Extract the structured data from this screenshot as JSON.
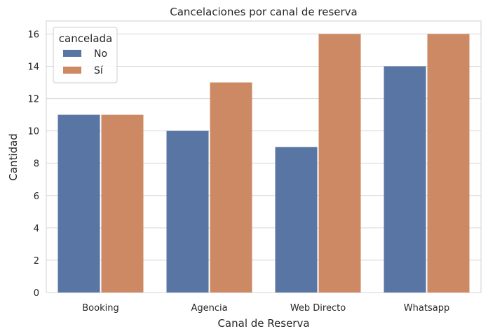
{
  "chart_data": {
    "type": "bar",
    "title": "Cancelaciones por canal de reserva",
    "xlabel": "Canal de Reserva",
    "ylabel": "Cantidad",
    "categories": [
      "Booking",
      "Agencia",
      "Web Directo",
      "Whatsapp"
    ],
    "series": [
      {
        "name": "No",
        "values": [
          11,
          10,
          9,
          14
        ],
        "color": "#5875a4"
      },
      {
        "name": "Sí",
        "values": [
          11,
          13,
          16,
          16
        ],
        "color": "#cc8963"
      }
    ],
    "ylim": [
      0,
      16.8
    ],
    "yticks": [
      0,
      2,
      4,
      6,
      8,
      10,
      12,
      14,
      16
    ],
    "grid": true,
    "legend": {
      "title": "cancelada",
      "placement": "top-left"
    }
  }
}
